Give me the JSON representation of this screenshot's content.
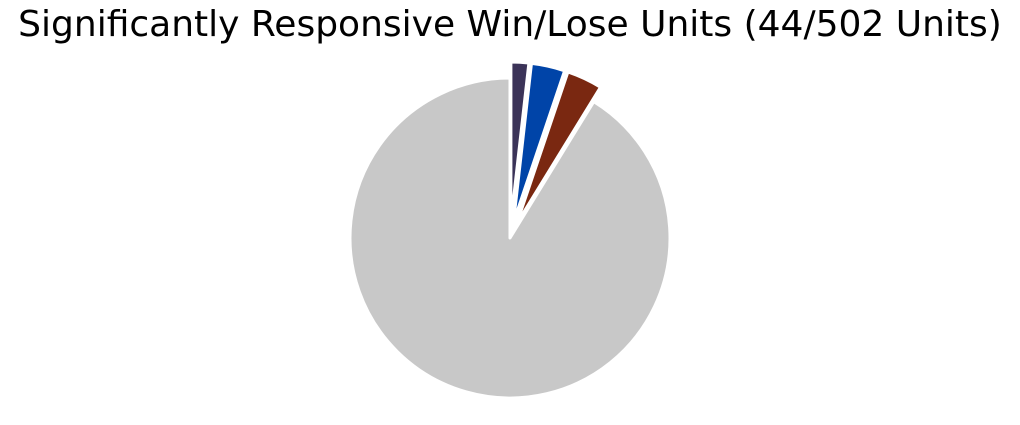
{
  "chart_data": {
    "type": "pie",
    "title": "Significantly Responsive Win/Lose Units (44/502 Units)",
    "start_angle_deg": 90,
    "direction": "clockwise",
    "slices": [
      {
        "value": 9,
        "color": "#3b3358",
        "exploded": true
      },
      {
        "value": 17,
        "color": "#0044a8",
        "exploded": true
      },
      {
        "value": 18,
        "color": "#7a2811",
        "exploded": true
      },
      {
        "value": 458,
        "color": "#c8c8c8",
        "exploded": false
      }
    ],
    "slice_edge_color": "#ffffff",
    "legend": "none"
  }
}
